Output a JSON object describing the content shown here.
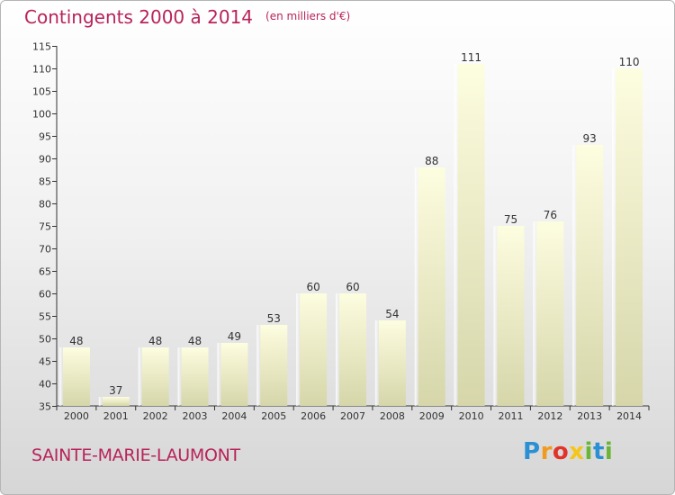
{
  "header": {
    "title": "Contingents 2000 à 2014",
    "unit": "(en milliers d'€)"
  },
  "footer": {
    "commune": "SAINTE-MARIE-LAUMONT",
    "logo": "Proxiti"
  },
  "colors": {
    "title": "#b8235a",
    "bar_top": "#fdfde0",
    "bar_bottom": "#d6d6aa",
    "axis": "#333333"
  },
  "chart_data": {
    "type": "bar",
    "title": "Contingents 2000 à 2014",
    "subtitle": "(en milliers d'€)",
    "categories": [
      "2000",
      "2001",
      "2002",
      "2003",
      "2004",
      "2005",
      "2006",
      "2007",
      "2008",
      "2009",
      "2010",
      "2011",
      "2012",
      "2013",
      "2014"
    ],
    "values": [
      48,
      37,
      48,
      48,
      49,
      53,
      60,
      60,
      54,
      88,
      111,
      75,
      76,
      93,
      110
    ],
    "ylim": [
      35,
      115
    ],
    "yticks": [
      35,
      40,
      45,
      50,
      55,
      60,
      65,
      70,
      75,
      80,
      85,
      90,
      95,
      100,
      105,
      110,
      115
    ],
    "grid": false,
    "data_labels": true
  }
}
